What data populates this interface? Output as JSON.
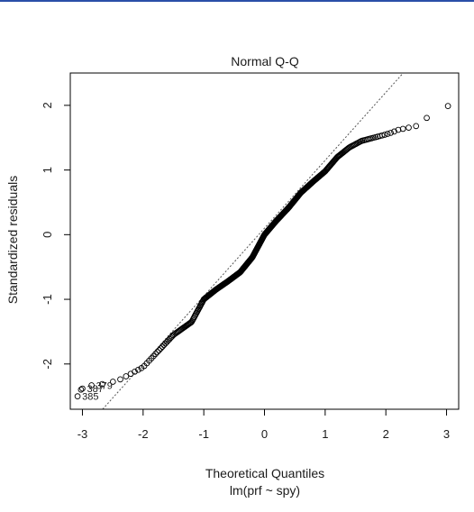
{
  "window": {
    "top_bar_color": "#2a4fa8"
  },
  "chart_data": {
    "type": "scatter",
    "title": "Normal Q-Q",
    "xlabel": "Theoretical Quantiles",
    "subtitle": "lm(prf ~ spy)",
    "ylabel": "Standardized residuals",
    "xlim": [
      -3.2,
      3.2
    ],
    "ylim": [
      -2.7,
      2.5
    ],
    "x_ticks": [
      -3,
      -2,
      -1,
      0,
      1,
      2,
      3
    ],
    "y_ticks": [
      -2,
      -1,
      0,
      1,
      2
    ],
    "x_tick_labels": [
      "-3",
      "-2",
      "-1",
      "0",
      "1",
      "2",
      "3"
    ],
    "y_tick_labels": [
      "-2",
      "-1",
      "0",
      "1",
      "2"
    ],
    "n_points": 400,
    "reference_line": {
      "intercept": 0.1,
      "slope": 1.05,
      "style": "dotted",
      "color": "#555555"
    },
    "curve": {
      "x": [
        -3.1,
        -3.0,
        -2.9,
        -2.8,
        -2.6,
        -2.4,
        -2.2,
        -2.0,
        -1.85,
        -1.7,
        -1.5,
        -1.2,
        -1.0,
        -0.8,
        -0.6,
        -0.4,
        -0.2,
        0.0,
        0.2,
        0.4,
        0.6,
        0.8,
        1.0,
        1.2,
        1.4,
        1.6,
        1.8,
        2.0,
        2.1,
        2.2,
        2.35,
        2.5,
        2.6,
        2.8,
        3.1
      ],
      "y": [
        -2.45,
        -2.38,
        -2.35,
        -2.33,
        -2.3,
        -2.25,
        -2.15,
        -2.05,
        -1.9,
        -1.75,
        -1.55,
        -1.35,
        -1.0,
        -0.85,
        -0.72,
        -0.58,
        -0.35,
        0.0,
        0.22,
        0.42,
        0.65,
        0.82,
        0.98,
        1.2,
        1.35,
        1.45,
        1.5,
        1.55,
        1.58,
        1.62,
        1.65,
        1.68,
        1.75,
        1.9,
        2.02
      ]
    },
    "outliers": [
      {
        "label": "385",
        "x": -3.08,
        "y": -2.5
      },
      {
        "label": "387",
        "x": -3.0,
        "y": -2.38
      },
      {
        "label": "379",
        "x": -2.85,
        "y": -2.33
      }
    ],
    "grid": false,
    "point_shape": "open-circle"
  }
}
